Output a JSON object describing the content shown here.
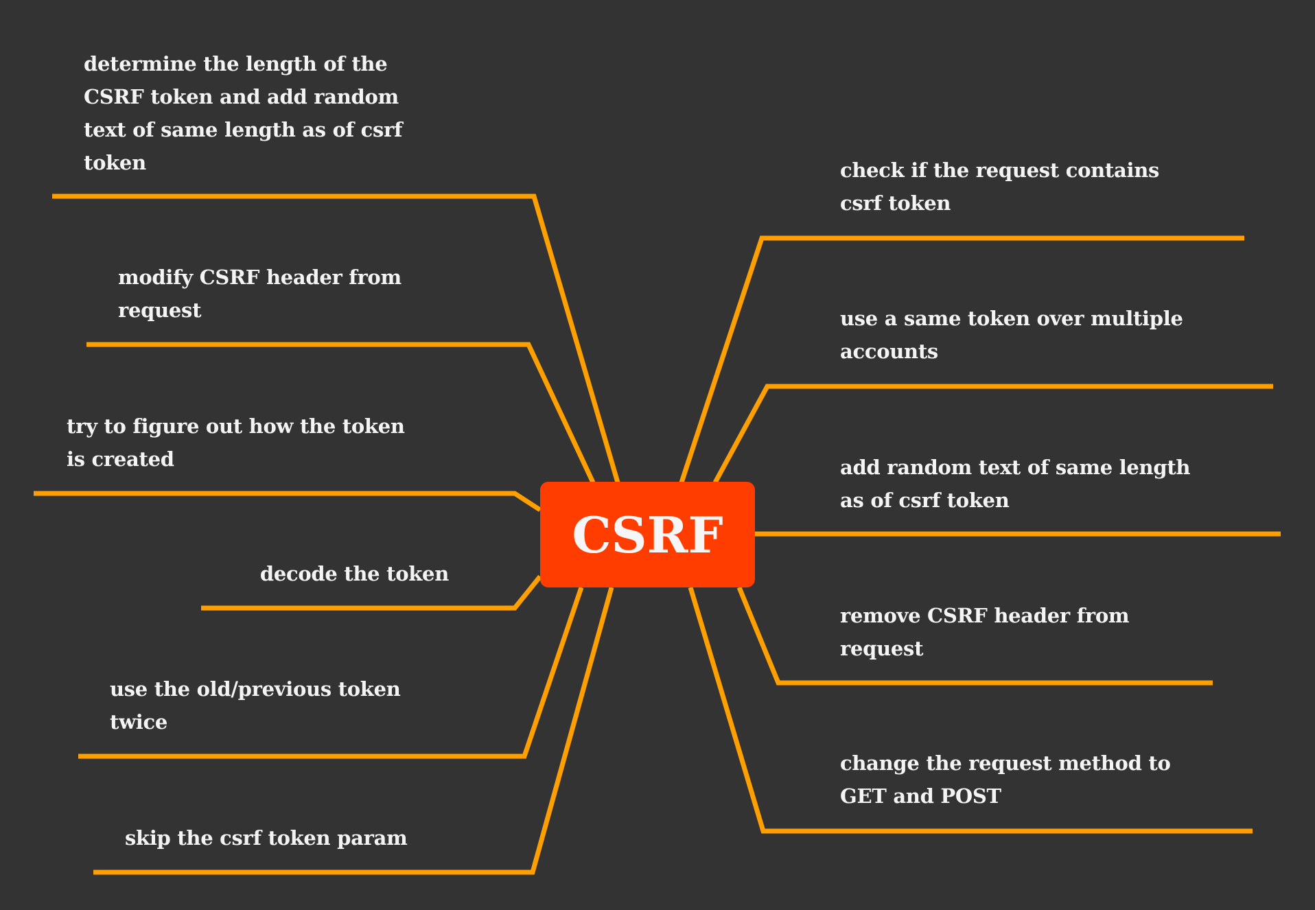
{
  "colors": {
    "background": "#333333",
    "branch": "#ffa000",
    "central": "#ff3d00",
    "text": "#f4f4f4"
  },
  "central": {
    "label": "CSRF"
  },
  "left_branches": [
    {
      "lines": [
        "determine the length of the",
        "CSRF token and add random",
        "text of same length as of csrf",
        "token"
      ]
    },
    {
      "lines": [
        "modify CSRF header from",
        "request"
      ]
    },
    {
      "lines": [
        "try to figure out how the token",
        "is created"
      ]
    },
    {
      "lines": [
        "decode the token"
      ]
    },
    {
      "lines": [
        "use the old/previous token",
        "twice"
      ]
    },
    {
      "lines": [
        "skip the csrf token param"
      ]
    }
  ],
  "right_branches": [
    {
      "lines": [
        "check if the request contains",
        "csrf token"
      ]
    },
    {
      "lines": [
        "use a same token over multiple",
        "accounts"
      ]
    },
    {
      "lines": [
        "add random text of same length",
        "as of csrf token"
      ]
    },
    {
      "lines": [
        "remove CSRF header from",
        "request"
      ]
    },
    {
      "lines": [
        "change the request method to",
        "GET and POST"
      ]
    }
  ]
}
